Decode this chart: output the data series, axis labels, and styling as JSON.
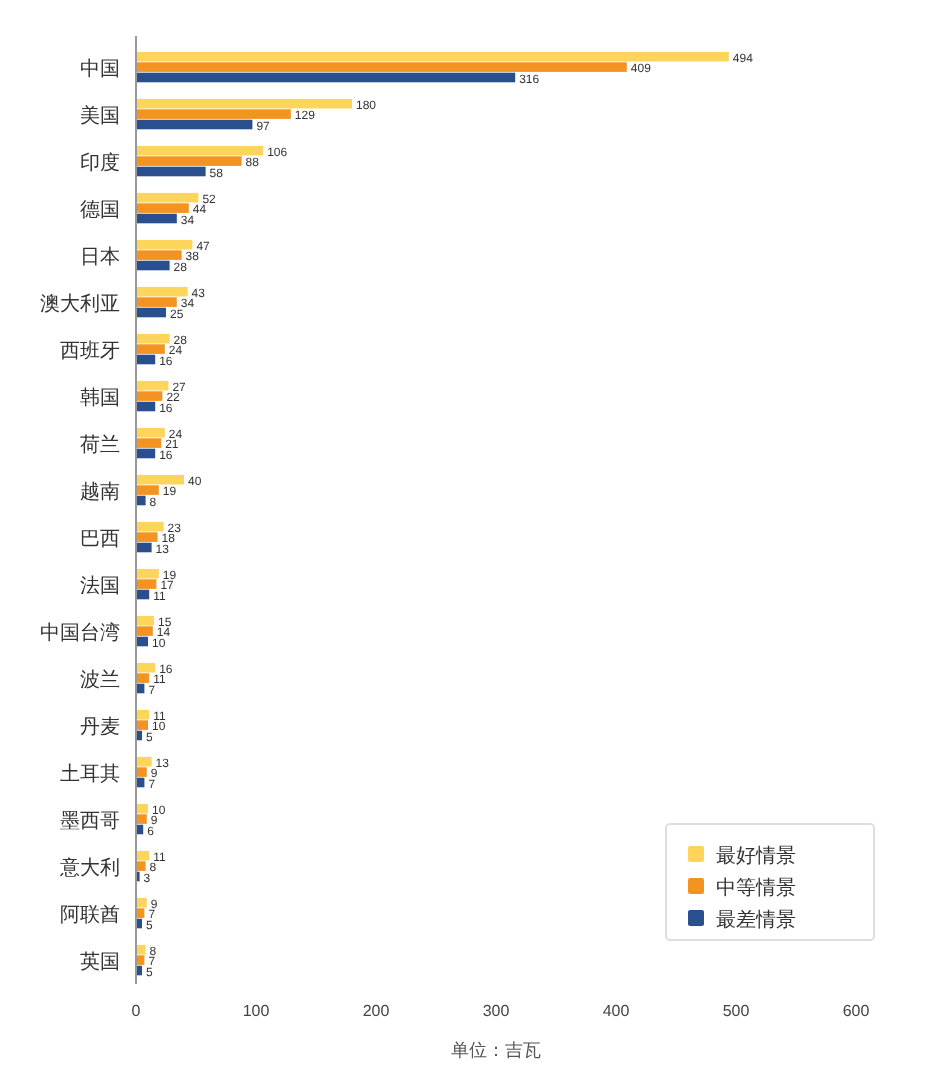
{
  "chart_data": {
    "type": "bar",
    "orientation": "horizontal",
    "categories": [
      "中国",
      "美国",
      "印度",
      "德国",
      "日本",
      "澳大利亚",
      "西班牙",
      "韩国",
      "荷兰",
      "越南",
      "巴西",
      "法国",
      "中国台湾",
      "波兰",
      "丹麦",
      "土耳其",
      "墨西哥",
      "意大利",
      "阿联酋",
      "英国"
    ],
    "series": [
      {
        "name": "最好情景",
        "color": "#fdd55a",
        "values": [
          494,
          180,
          106,
          52,
          47,
          43,
          28,
          27,
          24,
          40,
          23,
          19,
          15,
          16,
          11,
          13,
          10,
          11,
          9,
          8
        ]
      },
      {
        "name": "中等情景",
        "color": "#f39422",
        "values": [
          409,
          129,
          88,
          44,
          38,
          34,
          24,
          22,
          21,
          19,
          18,
          17,
          14,
          11,
          10,
          9,
          9,
          8,
          7,
          7
        ]
      },
      {
        "name": "最差情景",
        "color": "#2a4f8f",
        "values": [
          316,
          97,
          58,
          34,
          28,
          25,
          16,
          16,
          16,
          8,
          13,
          11,
          10,
          7,
          5,
          7,
          6,
          3,
          5,
          5
        ]
      }
    ],
    "xlim": [
      0,
      600
    ],
    "xticks": [
      0,
      100,
      200,
      300,
      400,
      500,
      600
    ],
    "xlabel": "单位：吉瓦",
    "legend": "bottom right",
    "data_labels": true
  }
}
